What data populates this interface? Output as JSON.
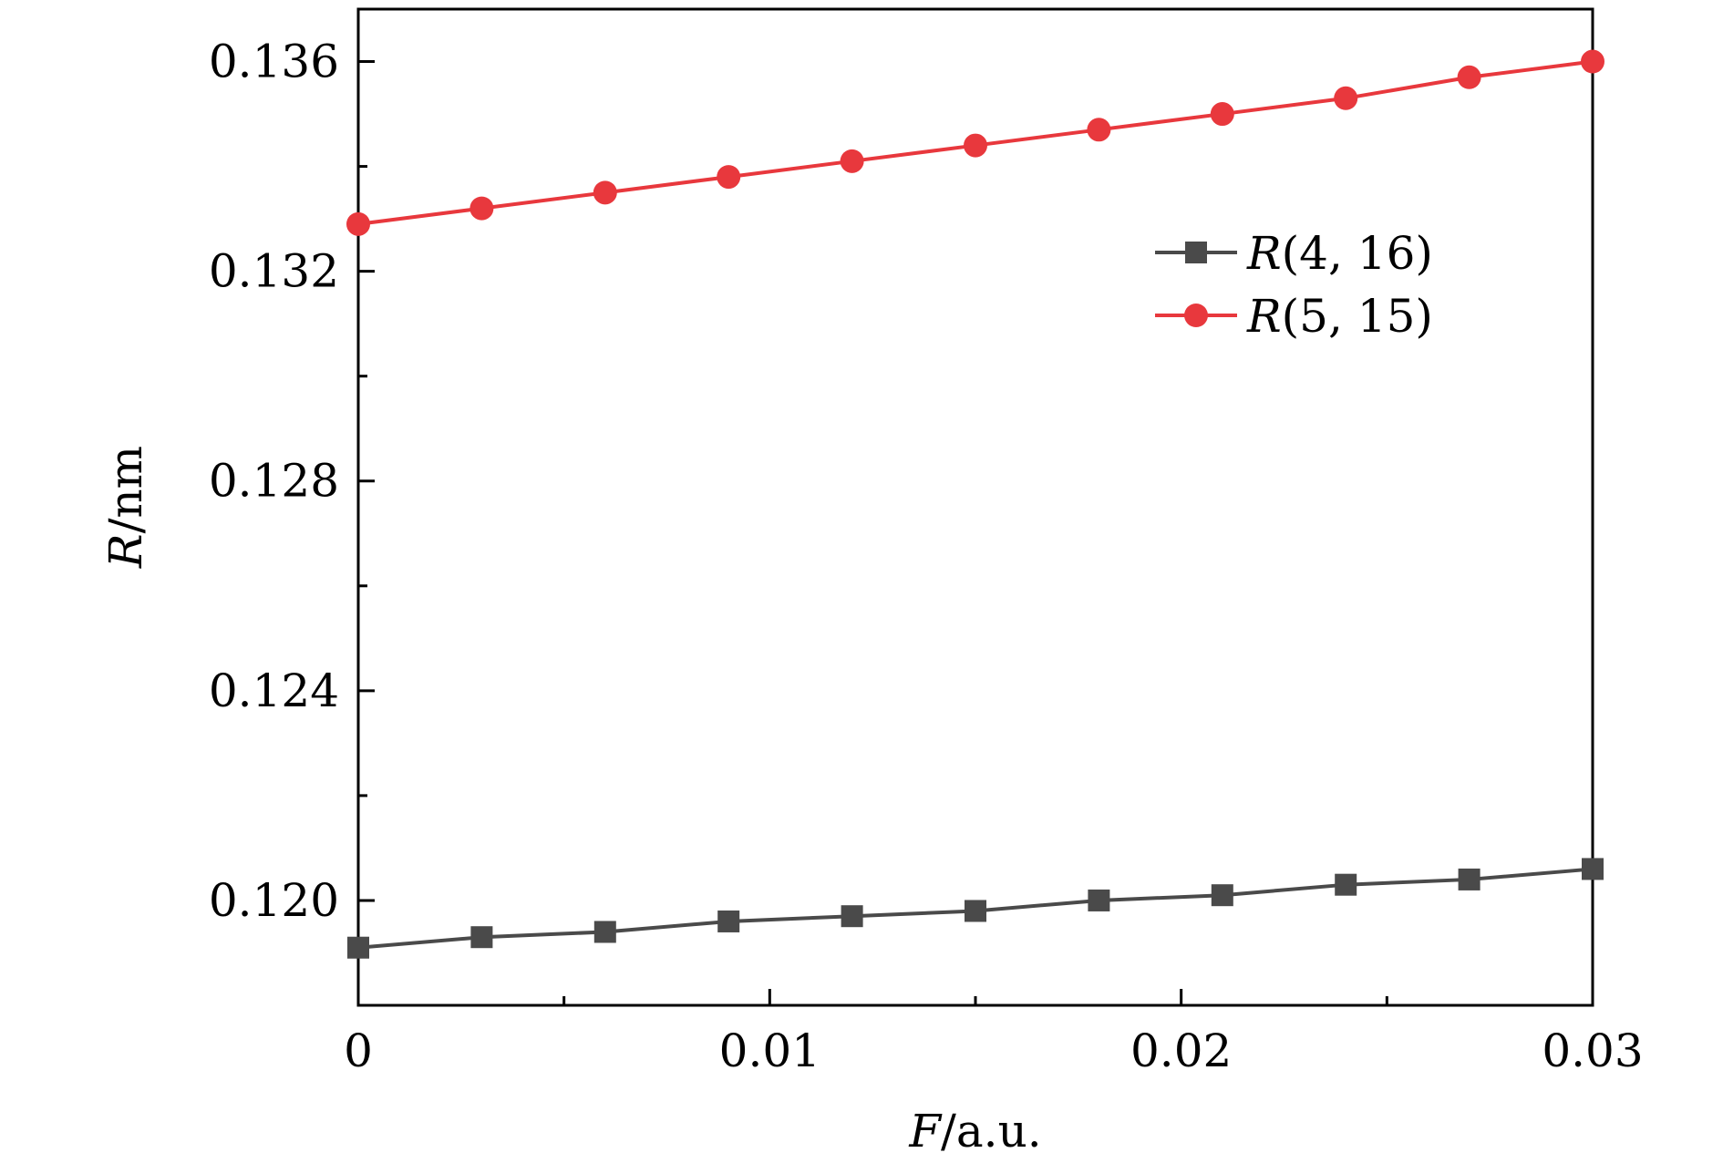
{
  "chart_data": {
    "type": "line",
    "x": [
      0,
      0.003,
      0.006,
      0.009,
      0.012,
      0.015,
      0.018,
      0.021,
      0.024,
      0.027,
      0.03
    ],
    "series": [
      {
        "name": "R(4, 16)",
        "name_symbol": "R",
        "name_args": "(4, 16)",
        "color": "#4a4a4a",
        "marker": "square",
        "values": [
          0.1191,
          0.1193,
          0.1194,
          0.1196,
          0.1197,
          0.1198,
          0.12,
          0.1201,
          0.1203,
          0.1204,
          0.1206
        ]
      },
      {
        "name": "R(5, 15)",
        "name_symbol": "R",
        "name_args": "(5, 15)",
        "color": "#e8383d",
        "marker": "circle",
        "values": [
          0.1329,
          0.1332,
          0.1335,
          0.1338,
          0.1341,
          0.1344,
          0.1347,
          0.135,
          0.1353,
          0.1357,
          0.136
        ]
      }
    ],
    "xlim": [
      0,
      0.03
    ],
    "ylim": [
      0.118,
      0.137
    ],
    "x_ticks": [
      0,
      0.01,
      0.02,
      0.03
    ],
    "x_tick_labels": [
      "0",
      "0.01",
      "0.02",
      "0.03"
    ],
    "x_minor_ticks": [
      0.005,
      0.015,
      0.025
    ],
    "y_ticks": [
      0.12,
      0.124,
      0.128,
      0.132,
      0.136
    ],
    "y_tick_labels": [
      "0.120",
      "0.124",
      "0.128",
      "0.132",
      "0.136"
    ],
    "y_minor_ticks": [
      0.122,
      0.126,
      0.13,
      0.134
    ],
    "xlabel_symbol": "F",
    "xlabel_unit": "/a.u.",
    "ylabel_symbol": "R",
    "ylabel_unit": "/nm",
    "legend_position": "top-right",
    "grid": false
  }
}
